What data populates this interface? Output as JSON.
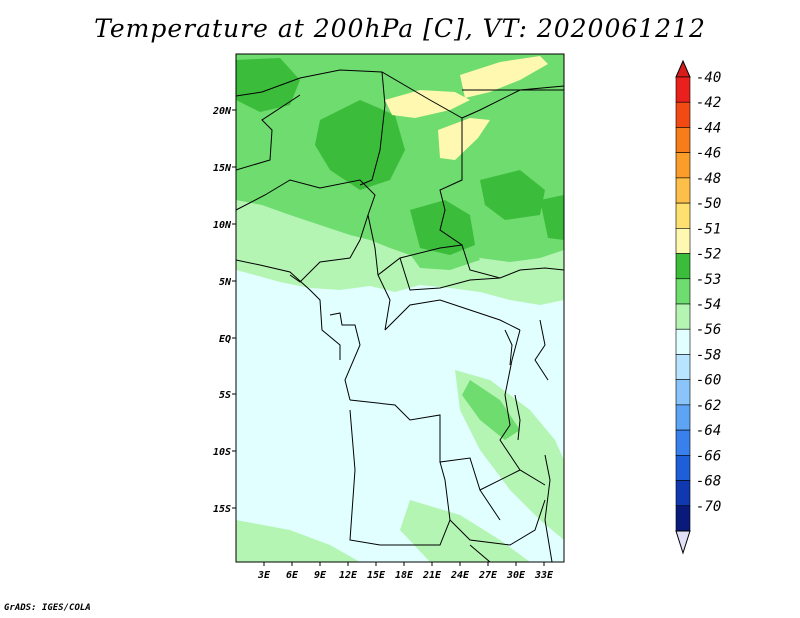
{
  "title": "Temperature at 200hPa [C], VT: 2020061212",
  "credit": "GrADS: IGES/COLA",
  "map": {
    "lat_labels": [
      "20N",
      "15N",
      "10N",
      "5N",
      "EQ",
      "5S",
      "10S",
      "15S"
    ],
    "lon_labels": [
      "3E",
      "6E",
      "9E",
      "12E",
      "15E",
      "18E",
      "21E",
      "24E",
      "27E",
      "30E",
      "33E"
    ]
  },
  "colorbar": {
    "levels": [
      {
        "label": "-40",
        "color": "#e8211e"
      },
      {
        "label": "-42",
        "color": "#f24a14"
      },
      {
        "label": "-44",
        "color": "#f77c1a"
      },
      {
        "label": "-46",
        "color": "#fb9d2a"
      },
      {
        "label": "-48",
        "color": "#fcc04a"
      },
      {
        "label": "-50",
        "color": "#fde070"
      },
      {
        "label": "-51",
        "color": "#fff8b0"
      },
      {
        "label": "-52",
        "color": "#3bbd3b"
      },
      {
        "label": "-53",
        "color": "#6edc6e"
      },
      {
        "label": "-54",
        "color": "#b4f5b4"
      },
      {
        "label": "-56",
        "color": "#e2ffff"
      },
      {
        "label": "-58",
        "color": "#b8e4ff"
      },
      {
        "label": "-60",
        "color": "#8ac4fa"
      },
      {
        "label": "-62",
        "color": "#5ea4f5"
      },
      {
        "label": "-64",
        "color": "#3a80ed"
      },
      {
        "label": "-66",
        "color": "#1f5ed9"
      },
      {
        "label": "-68",
        "color": "#1038b0"
      },
      {
        "label": "-70",
        "color": "#0a1a7a"
      }
    ],
    "over_color": "#d81c1c",
    "under_color": "#e0e0f6"
  }
}
